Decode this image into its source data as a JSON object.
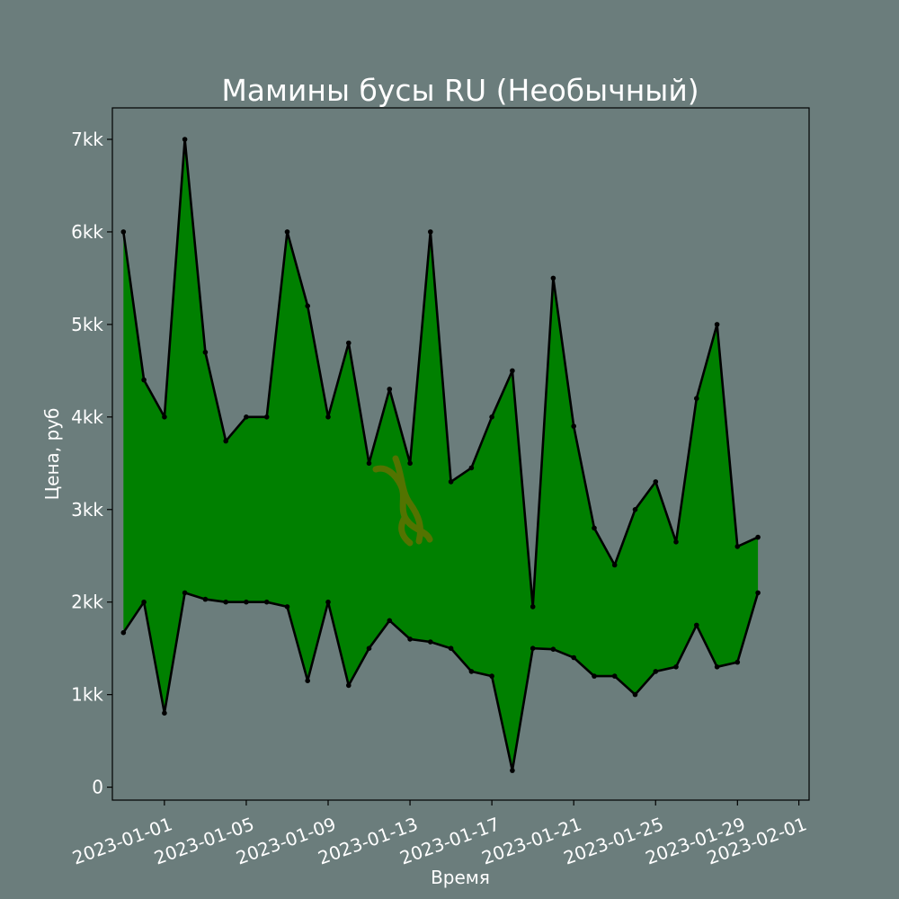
{
  "chart_data": {
    "type": "area",
    "title": "Мамины бусы RU (Необычный)",
    "xlabel": "Время",
    "ylabel": "Цена, руб",
    "x": [
      "2022-12-30",
      "2022-12-31",
      "2023-01-01",
      "2023-01-02",
      "2023-01-03",
      "2023-01-04",
      "2023-01-05",
      "2023-01-06",
      "2023-01-07",
      "2023-01-08",
      "2023-01-09",
      "2023-01-10",
      "2023-01-11",
      "2023-01-12",
      "2023-01-13",
      "2023-01-14",
      "2023-01-15",
      "2023-01-16",
      "2023-01-17",
      "2023-01-18",
      "2023-01-19",
      "2023-01-20",
      "2023-01-21",
      "2023-01-22",
      "2023-01-23",
      "2023-01-24",
      "2023-01-25",
      "2023-01-26",
      "2023-01-27",
      "2023-01-28",
      "2023-01-29",
      "2023-01-30"
    ],
    "series": [
      {
        "role": "max",
        "values": [
          6000,
          4400,
          4000,
          7000,
          4700,
          3740,
          4000,
          4000,
          6000,
          5200,
          4000,
          4800,
          3500,
          4300,
          3500,
          6000,
          3300,
          3450,
          4000,
          4500,
          1950,
          5500,
          3900,
          2800,
          2400,
          3000,
          3300,
          2650,
          4200,
          5000,
          2600,
          2700
        ]
      },
      {
        "role": "min",
        "values": [
          1670,
          2000,
          800,
          2100,
          2030,
          2000,
          2000,
          2000,
          1950,
          1150,
          2000,
          1100,
          1500,
          1800,
          1600,
          1570,
          1500,
          1250,
          1200,
          180,
          1500,
          1490,
          1400,
          1200,
          1200,
          1000,
          1250,
          1300,
          1750,
          1300,
          1350,
          2100
        ]
      }
    ],
    "x_ticks": [
      "2023-01-01",
      "2023-01-05",
      "2023-01-09",
      "2023-01-13",
      "2023-01-17",
      "2023-01-21",
      "2023-01-25",
      "2023-01-29",
      "2023-02-01"
    ],
    "y_ticks": [
      {
        "value": 0,
        "label": "0"
      },
      {
        "value": 1000,
        "label": "1kk"
      },
      {
        "value": 2000,
        "label": "2kk"
      },
      {
        "value": 3000,
        "label": "3kk"
      },
      {
        "value": 4000,
        "label": "4kk"
      },
      {
        "value": 5000,
        "label": "5kk"
      },
      {
        "value": 6000,
        "label": "6kk"
      },
      {
        "value": 7000,
        "label": "7kk"
      }
    ],
    "xlim": [
      "2022-12-29T11:00",
      "2023-02-01T12:00"
    ],
    "ylim": [
      -140,
      7340
    ],
    "grid": false,
    "colors": {
      "fill": "#008000",
      "line": "#000000",
      "background": "#6b7d7c",
      "text": "#ffffff"
    }
  }
}
